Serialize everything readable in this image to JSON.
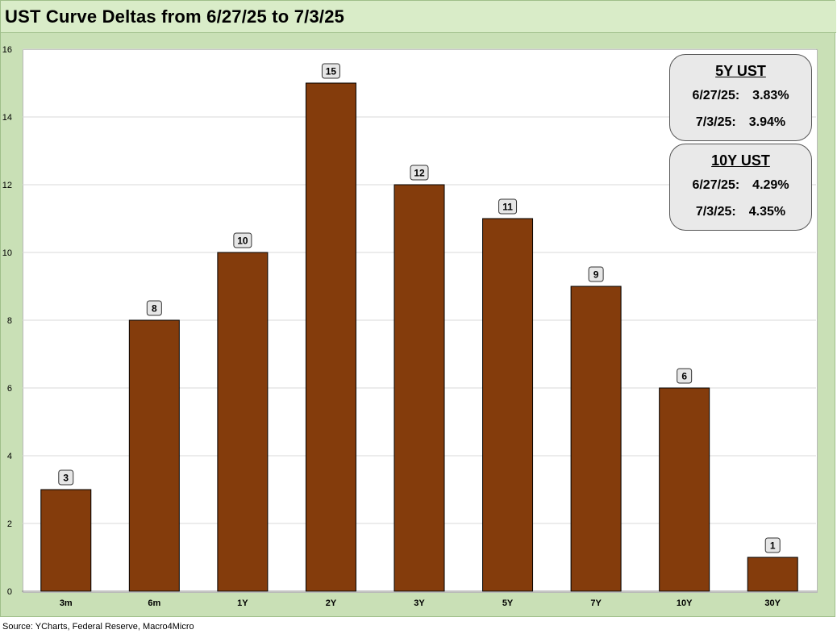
{
  "title": "UST Curve Deltas from 6/27/25 to 7/3/25",
  "source": "Source: YCharts, Federal Reserve, Macro4Micro",
  "colors": {
    "bar": "#843c0c",
    "label_box": "#e6e6e6",
    "grid": "#d9d9d9"
  },
  "chart_data": {
    "type": "bar",
    "title": "UST Curve Deltas from 6/27/25 to 7/3/25",
    "categories": [
      "3m",
      "6m",
      "1Y",
      "2Y",
      "3Y",
      "5Y",
      "7Y",
      "10Y",
      "30Y"
    ],
    "values": [
      3,
      8,
      10,
      15,
      12,
      11,
      9,
      6,
      1
    ],
    "ylim": [
      0,
      16
    ],
    "yticks": [
      0,
      2,
      4,
      6,
      8,
      10,
      12,
      14,
      16
    ],
    "xlabel": "",
    "ylabel": "",
    "grid": true,
    "data_labels": true
  },
  "info_boxes": [
    {
      "heading": "5Y UST",
      "rows": [
        {
          "date": "6/27/25:",
          "value": "3.83%"
        },
        {
          "date": "7/3/25:",
          "value": "3.94%"
        }
      ]
    },
    {
      "heading": "10Y UST",
      "rows": [
        {
          "date": "6/27/25:",
          "value": "4.29%"
        },
        {
          "date": "7/3/25:",
          "value": "4.35%"
        }
      ]
    }
  ]
}
